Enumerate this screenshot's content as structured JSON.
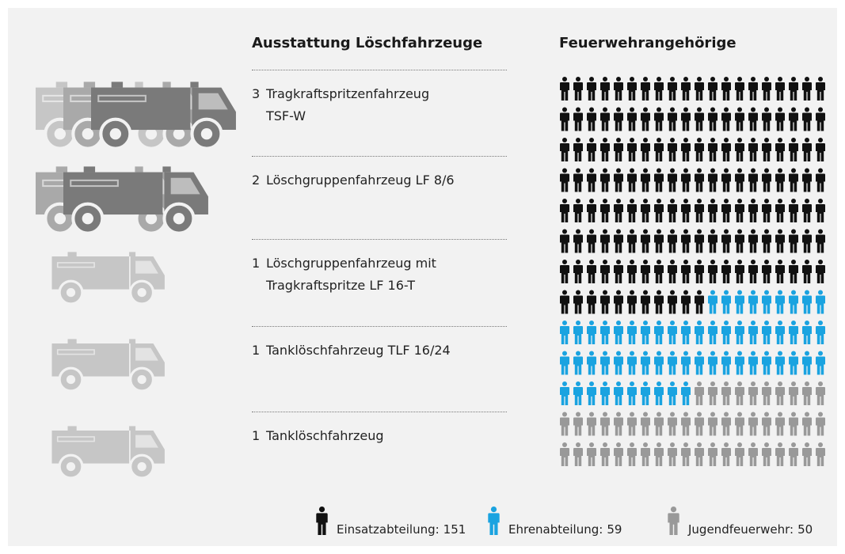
{
  "equipment": {
    "title": "Ausstattung Löschfahrzeuge",
    "items": [
      {
        "count": 3,
        "name": "Tragkraftspritzenfahrzeug TSF-W"
      },
      {
        "count": 2,
        "name": "Löschgruppenfahrzeug LF 8/6"
      },
      {
        "count": 1,
        "name": "Löschgruppenfahrzeug mit Tragkraftspritze LF 16-T"
      },
      {
        "count": 1,
        "name": "Tanklöschfahrzeug TLF 16/24"
      },
      {
        "count": 1,
        "name": "Tanklöschfahrzeug"
      }
    ]
  },
  "chart_data": {
    "type": "pictogram",
    "title": "Feuerwehrangehörige",
    "series": [
      {
        "name": "Einsatzabteilung",
        "color": "#111111",
        "value": 151
      },
      {
        "name": "Ehrenabteilung",
        "color": "#1aa3e0",
        "value": 59
      },
      {
        "name": "Jugendfeuerwehr",
        "color": "#999999",
        "value": 50
      }
    ]
  }
}
